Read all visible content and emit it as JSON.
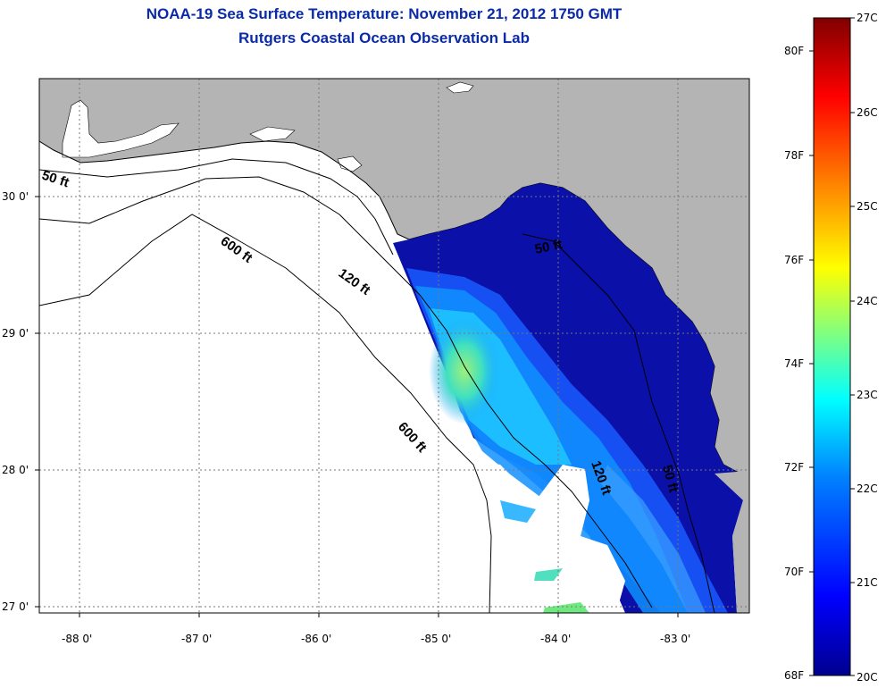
{
  "header": {
    "title": "NOAA-19 Sea Surface Temperature:  November 21, 2012 1750 GMT",
    "subtitle": "Rutgers Coastal Ocean Observation Lab"
  },
  "map": {
    "lon_ticks": [
      "-88 0'",
      "-87 0'",
      "-86 0'",
      "-85 0'",
      "-84 0'",
      "-83 0'"
    ],
    "lat_ticks": [
      "30 0'",
      "29 0'",
      "28 0'",
      "27 0'"
    ],
    "contours": {
      "c50_left": "50 ft",
      "c600_upper": "600 ft",
      "c120_upper": "120 ft",
      "c50_east": "50 ft",
      "c600_lower": "600 ft",
      "c120_lower": "120 ft",
      "c50_lower": "50 ft"
    },
    "colors": {
      "land": "#b4b4b4",
      "ocean_nodata": "#ffffff",
      "grid": "#777777"
    }
  },
  "colorbar": {
    "celsius": [
      "27C",
      "26C",
      "25C",
      "24C",
      "23C",
      "22C",
      "21C",
      "20C"
    ],
    "fahrenheit": [
      "80F",
      "78F",
      "76F",
      "74F",
      "72F",
      "70F",
      "68F"
    ],
    "colors": [
      "#00008f",
      "#0000ff",
      "#0080ff",
      "#00ffff",
      "#80ff80",
      "#ffff00",
      "#ff8000",
      "#ff0000",
      "#800000"
    ]
  }
}
